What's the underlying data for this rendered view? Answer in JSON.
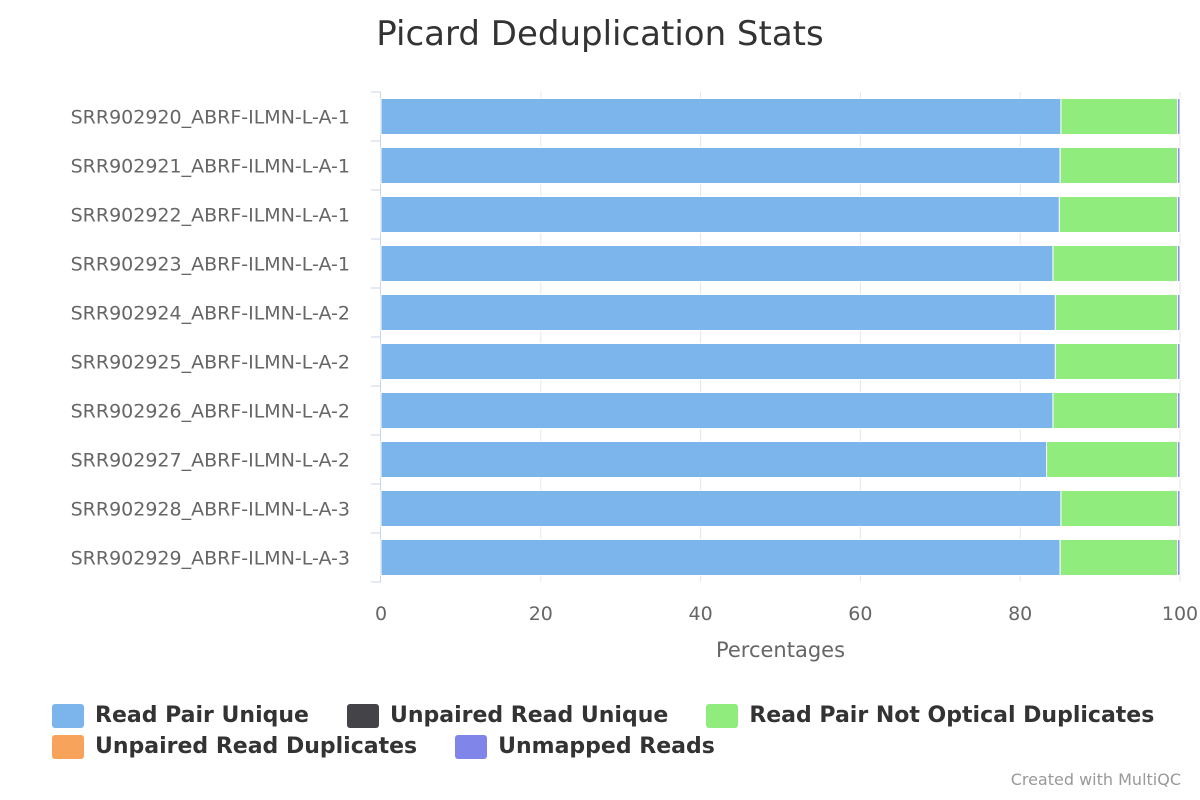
{
  "chart_data": {
    "type": "bar",
    "orientation": "horizontal",
    "stacked": true,
    "title": "Picard Deduplication Stats",
    "xlabel": "Percentages",
    "ylabel": "",
    "xlim": [
      0,
      100
    ],
    "x_ticks": [
      "0",
      "20",
      "40",
      "60",
      "80",
      "100"
    ],
    "grid": true,
    "legend_position": "bottom",
    "categories": [
      "SRR902920_ABRF-ILMN-L-A-1",
      "SRR902921_ABRF-ILMN-L-A-1",
      "SRR902922_ABRF-ILMN-L-A-1",
      "SRR902923_ABRF-ILMN-L-A-1",
      "SRR902924_ABRF-ILMN-L-A-2",
      "SRR902925_ABRF-ILMN-L-A-2",
      "SRR902926_ABRF-ILMN-L-A-2",
      "SRR902927_ABRF-ILMN-L-A-2",
      "SRR902928_ABRF-ILMN-L-A-3",
      "SRR902929_ABRF-ILMN-L-A-3"
    ],
    "series": [
      {
        "name": "Read Pair Unique",
        "color": "#7cb5ec",
        "values": [
          85.1,
          85.0,
          84.9,
          84.1,
          84.4,
          84.4,
          84.1,
          83.3,
          85.1,
          85.0
        ]
      },
      {
        "name": "Unpaired Read Unique",
        "color": "#434348",
        "values": [
          0,
          0,
          0,
          0,
          0,
          0,
          0,
          0,
          0,
          0
        ]
      },
      {
        "name": "Read Pair Not Optical Duplicates",
        "color": "#90ed7d",
        "values": [
          14.6,
          14.7,
          14.8,
          15.6,
          15.3,
          15.3,
          15.6,
          16.4,
          14.6,
          14.7
        ]
      },
      {
        "name": "Unpaired Read Duplicates",
        "color": "#f7a35c",
        "values": [
          0,
          0,
          0,
          0,
          0,
          0,
          0,
          0,
          0,
          0
        ]
      },
      {
        "name": "Unmapped Reads",
        "color": "#8085e9",
        "values": [
          0.3,
          0.3,
          0.3,
          0.3,
          0.3,
          0.3,
          0.3,
          0.3,
          0.3,
          0.3
        ]
      }
    ]
  },
  "credits": "Created with MultiQC"
}
